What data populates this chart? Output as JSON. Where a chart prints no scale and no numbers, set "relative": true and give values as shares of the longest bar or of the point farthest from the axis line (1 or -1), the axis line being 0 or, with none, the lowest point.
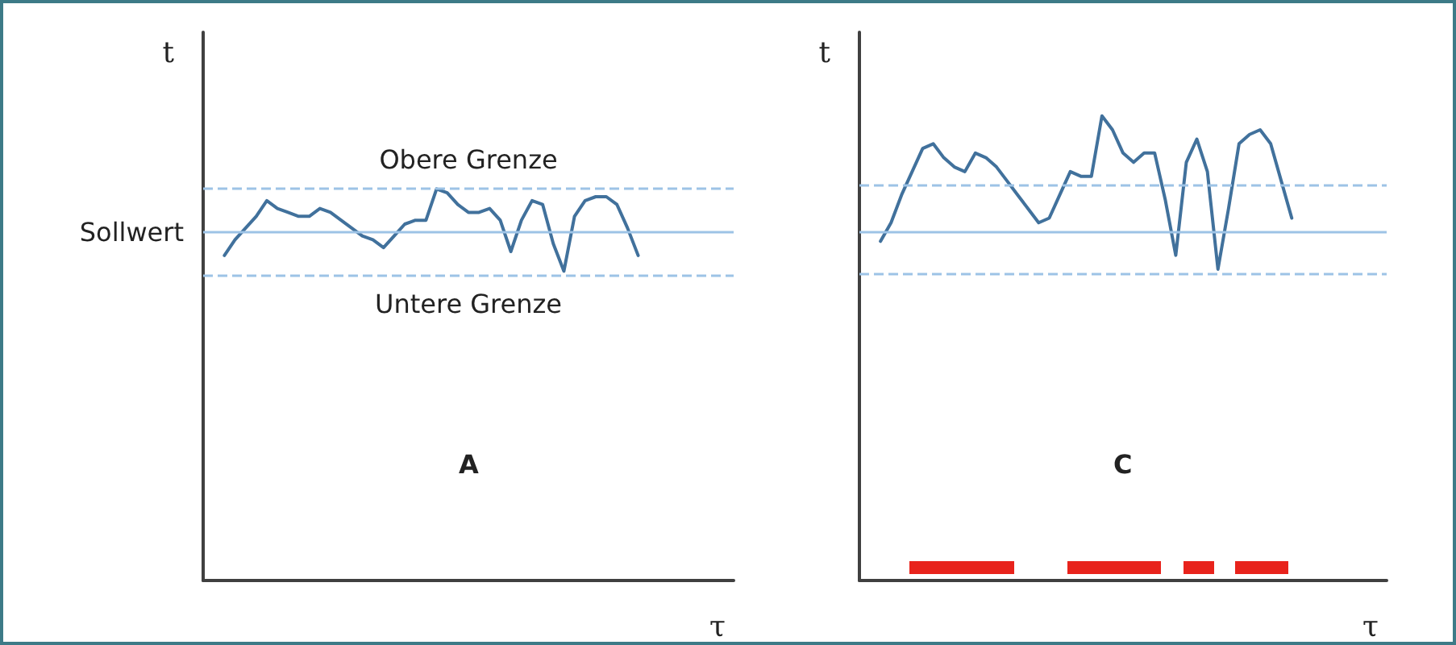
{
  "chart_data": [
    {
      "type": "line",
      "relative": true,
      "xlabel": "τ",
      "ylabel": "t",
      "line_style": "solid",
      "categories": [
        null,
        null,
        null,
        null,
        null,
        null,
        null,
        null,
        null,
        null,
        null,
        null,
        null,
        null,
        null,
        null,
        null,
        null,
        null,
        null,
        null,
        null,
        null,
        null,
        null,
        null,
        null,
        null,
        null,
        null,
        null,
        null,
        null,
        null,
        null,
        null,
        null,
        null,
        null,
        null,
        null,
        null,
        null,
        null,
        null,
        null,
        null,
        null,
        null,
        null,
        null
      ],
      "marker": "none",
      "series": [
        {
          "color": "#41719c",
          "values": [
            null,
            null,
            0.83,
            0.87,
            0.9,
            0.93,
            0.97,
            0.95,
            0.94,
            0.93,
            0.93,
            0.95,
            0.94,
            0.92,
            0.9,
            0.88,
            0.87,
            0.85,
            0.88,
            0.91,
            0.92,
            0.92,
            1.0,
            0.99,
            0.96,
            0.94,
            0.94,
            0.95,
            0.92,
            0.84,
            0.92,
            0.97,
            0.96,
            0.86,
            0.79,
            0.93,
            0.97,
            0.98,
            0.98,
            0.96,
            0.9,
            0.83,
            null,
            null,
            null,
            null,
            null,
            null,
            null,
            null,
            null
          ]
        }
      ],
      "ref_lines": [
        {
          "axis": "y",
          "value": 1.0,
          "label": "Obere Grenze",
          "color": "#9dc3e6",
          "line_style": "dashed"
        },
        {
          "axis": "y",
          "value": 0.89,
          "label": "Sollwert",
          "color": "#9dc3e6",
          "line_style": "solid"
        },
        {
          "axis": "y",
          "value": 0.78,
          "label": "Untere Grenze",
          "color": "#9dc3e6",
          "line_style": "dashed"
        }
      ],
      "annotations": [
        "A"
      ]
    },
    {
      "type": "line",
      "relative": true,
      "xlabel": "τ",
      "ylabel": "t",
      "line_style": "solid",
      "categories": [
        null,
        null,
        null,
        null,
        null,
        null,
        null,
        null,
        null,
        null,
        null,
        null,
        null,
        null,
        null,
        null,
        null,
        null,
        null,
        null,
        null,
        null,
        null,
        null,
        null,
        null,
        null,
        null,
        null,
        null,
        null,
        null,
        null,
        null,
        null,
        null,
        null,
        null,
        null,
        null,
        null,
        null,
        null,
        null,
        null,
        null,
        null,
        null,
        null,
        null,
        null
      ],
      "marker": "none",
      "series": [
        {
          "color": "#41719c",
          "values": [
            null,
            null,
            0.73,
            0.77,
            0.83,
            0.88,
            0.93,
            0.94,
            0.91,
            0.89,
            0.88,
            0.92,
            0.91,
            0.89,
            0.86,
            0.83,
            0.8,
            0.77,
            0.78,
            0.83,
            0.88,
            0.87,
            0.87,
            1.0,
            0.97,
            0.92,
            0.9,
            0.92,
            0.92,
            0.82,
            0.7,
            0.9,
            0.95,
            0.88,
            0.67,
            0.8,
            0.94,
            0.96,
            0.97,
            0.94,
            0.86,
            0.78,
            null,
            null,
            null,
            null,
            null,
            null,
            null,
            null,
            null
          ]
        }
      ],
      "ref_lines": [
        {
          "axis": "y",
          "value": 0.85,
          "color": "#9dc3e6",
          "line_style": "dashed"
        },
        {
          "axis": "y",
          "value": 0.75,
          "color": "#9dc3e6",
          "line_style": "solid"
        },
        {
          "axis": "y",
          "value": 0.66,
          "color": "#9dc3e6",
          "line_style": "dashed"
        }
      ],
      "annotations": [
        "C"
      ]
    }
  ]
}
